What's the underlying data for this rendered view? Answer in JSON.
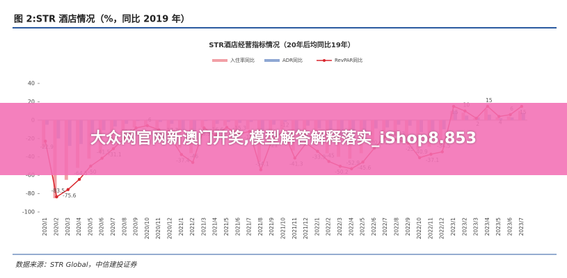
{
  "chart_data": {
    "type": "bar-line",
    "figure_title": "图 2:STR 酒店情况（%，同比 2019 年）",
    "title": "STR酒店经营指标情况（20年后均同比19年）",
    "source": "数据来源：STR Global，中信建投证券",
    "overlay_text": "大众网官网新澳门开奖,模型解答解释落实_iShop8.853",
    "categories": [
      "2020/1",
      "2020/2",
      "2020/3",
      "2020/4",
      "2020/5",
      "2020/6",
      "2020/7",
      "2020/8",
      "2020/9",
      "2020/10",
      "2020/11",
      "2020/12",
      "2021/1",
      "2021/2",
      "2021/3",
      "2021/4",
      "2021/5",
      "2021/6",
      "2021/7",
      "2021/8",
      "2021/9",
      "2021/10",
      "2021/11",
      "2021/12",
      "2022/1",
      "2022/2",
      "2022/3",
      "2022/4",
      "2022/5",
      "2022/6",
      "2022/7",
      "2022/8",
      "2022/9",
      "2022/10",
      "2022/11",
      "2022/12",
      "2023/1",
      "2023/2",
      "2023/3",
      "2023/4",
      "2023/5",
      "2023/6",
      "2023/7"
    ],
    "series": [
      {
        "name": "入住率同比",
        "kind": "bar",
        "color": "#f2a0a6",
        "values": [
          -30,
          -85,
          -65,
          -52,
          -42,
          -35,
          -26,
          -16,
          -8,
          -6,
          -9,
          -14,
          -30,
          -36,
          -8,
          -13,
          -6,
          -12,
          -10,
          -45,
          -17,
          -10,
          -33,
          -20,
          -27,
          -36,
          -40,
          -42,
          -36,
          -24,
          -14,
          -17,
          -20,
          -32,
          -29,
          -27,
          10,
          8,
          2,
          12,
          3,
          4,
          10
        ]
      },
      {
        "name": "ADR同比",
        "kind": "bar",
        "color": "#8fa8d4",
        "values": [
          -5,
          -20,
          -28,
          -26,
          -16,
          -11,
          -7,
          -4,
          -1,
          0,
          -2,
          -4,
          -11,
          -14,
          -1,
          -4,
          -2,
          -3,
          -2,
          -16,
          -5,
          -2,
          -12,
          -6,
          -9,
          -14,
          -17,
          -19,
          -15,
          -9,
          -8,
          -5,
          -6,
          -13,
          -11,
          -10,
          10,
          5,
          3,
          6,
          2,
          3,
          8
        ]
      },
      {
        "name": "RevPAR同比",
        "kind": "line",
        "color": "#d9272e",
        "values": [
          -22.9,
          -83.5,
          -75.6,
          -64.5,
          -50.0,
          -41.5,
          -31.1,
          -19.5,
          -8.5,
          -6.0,
          -10.5,
          -17.7,
          -37.4,
          -46.0,
          -8.5,
          -16.6,
          -7.9,
          -15.3,
          -12.3,
          -54.1,
          -21.0,
          -12.0,
          -41.3,
          -25.0,
          -33.9,
          -45.0,
          -50.2,
          -52.9,
          -45.6,
          -30.6,
          -18.0,
          -21.3,
          -25.0,
          -40.9,
          -37.1,
          -34.5,
          15,
          10,
          2,
          15,
          4,
          6,
          15
        ]
      }
    ],
    "ylim": [
      -100,
      40
    ],
    "yticks": [
      40,
      20,
      0,
      -20,
      -40,
      -60,
      -80,
      -100
    ]
  }
}
